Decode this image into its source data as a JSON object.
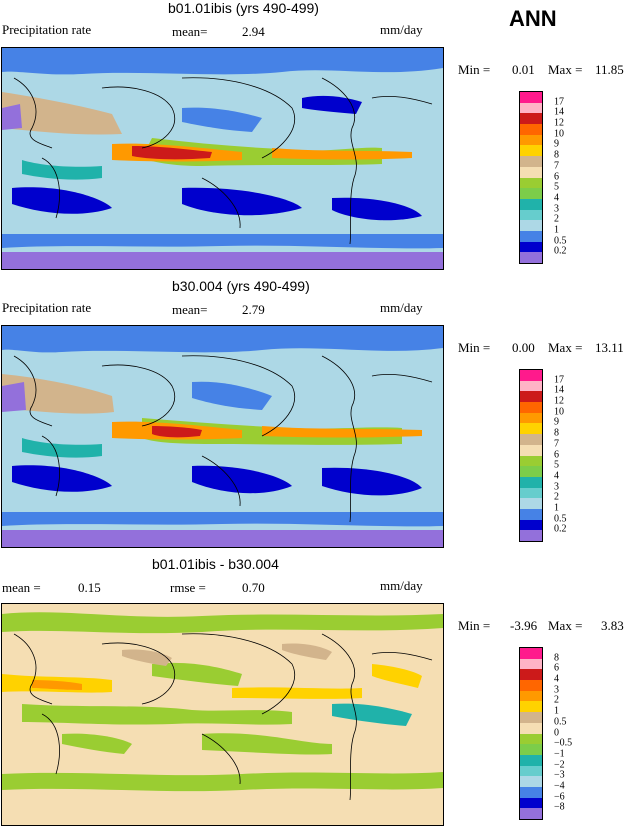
{
  "season": "ANN",
  "panels": [
    {
      "title": "b01.01ibis (yrs 490-499)",
      "left_label": "Precipitation rate",
      "stat_label": "mean=",
      "stat_value": "2.94",
      "stat2_label": "",
      "stat2_value": "",
      "units": "mm/day",
      "min_label": "Min =",
      "min_value": "0.01",
      "max_label": "Max =",
      "max_value": "11.85",
      "colorbar": {
        "levels": [
          "17",
          "14",
          "12",
          "10",
          "9",
          "8",
          "7",
          "6",
          "5",
          "4",
          "3",
          "2",
          "1",
          "0.5",
          "0.2"
        ],
        "colors": [
          "#ff1a8c",
          "#ffb3c6",
          "#cc1a1a",
          "#ff6600",
          "#ff9900",
          "#ffd200",
          "#d2b48c",
          "#f5deb3",
          "#9acd32",
          "#7ccd4a",
          "#20b2aa",
          "#66cdcd",
          "#add8e6",
          "#4682e6",
          "#0000cd",
          "#9370db"
        ]
      }
    },
    {
      "title": "b30.004 (yrs 490-499)",
      "left_label": "Precipitation rate",
      "stat_label": "mean=",
      "stat_value": "2.79",
      "stat2_label": "",
      "stat2_value": "",
      "units": "mm/day",
      "min_label": "Min =",
      "min_value": "0.00",
      "max_label": "Max =",
      "max_value": "13.11",
      "colorbar": {
        "levels": [
          "17",
          "14",
          "12",
          "10",
          "9",
          "8",
          "7",
          "6",
          "5",
          "4",
          "3",
          "2",
          "1",
          "0.5",
          "0.2"
        ],
        "colors": [
          "#ff1a8c",
          "#ffb3c6",
          "#cc1a1a",
          "#ff6600",
          "#ff9900",
          "#ffd200",
          "#d2b48c",
          "#f5deb3",
          "#9acd32",
          "#7ccd4a",
          "#20b2aa",
          "#66cdcd",
          "#add8e6",
          "#4682e6",
          "#0000cd",
          "#9370db"
        ]
      }
    },
    {
      "title": "b01.01ibis - b30.004",
      "left_label": "mean =",
      "stat_label": "",
      "stat_value": "0.15",
      "stat2_label": "rmse =",
      "stat2_value": "0.70",
      "units": "mm/day",
      "min_label": "Min =",
      "min_value": "-3.96",
      "max_label": "Max =",
      "max_value": "3.83",
      "colorbar": {
        "levels": [
          "8",
          "6",
          "4",
          "3",
          "2",
          "1",
          "0.5",
          "0",
          "−0.5",
          "−1",
          "−2",
          "−3",
          "−4",
          "−6",
          "−8"
        ],
        "colors": [
          "#ff1a8c",
          "#ffb3c6",
          "#cc1a1a",
          "#ff6600",
          "#ff9900",
          "#ffd200",
          "#d2b48c",
          "#f5deb3",
          "#9acd32",
          "#7ccd4a",
          "#20b2aa",
          "#66cdcd",
          "#add8e6",
          "#4682e6",
          "#0000cd",
          "#9370db"
        ]
      }
    }
  ],
  "chart_data": [
    {
      "type": "heatmap",
      "title": "b01.01ibis (yrs 490-499)",
      "variable": "Precipitation rate",
      "units": "mm/day",
      "mean": 2.94,
      "min": 0.01,
      "max": 11.85,
      "contour_levels": [
        0.2,
        0.5,
        1,
        2,
        3,
        4,
        5,
        6,
        7,
        8,
        9,
        10,
        12,
        14,
        17
      ]
    },
    {
      "type": "heatmap",
      "title": "b30.004 (yrs 490-499)",
      "variable": "Precipitation rate",
      "units": "mm/day",
      "mean": 2.79,
      "min": 0.0,
      "max": 13.11,
      "contour_levels": [
        0.2,
        0.5,
        1,
        2,
        3,
        4,
        5,
        6,
        7,
        8,
        9,
        10,
        12,
        14,
        17
      ]
    },
    {
      "type": "heatmap",
      "title": "b01.01ibis - b30.004",
      "units": "mm/day",
      "mean": 0.15,
      "rmse": 0.7,
      "min": -3.96,
      "max": 3.83,
      "contour_levels": [
        -8,
        -6,
        -4,
        -3,
        -2,
        -1,
        -0.5,
        0,
        0.5,
        1,
        2,
        3,
        4,
        6,
        8
      ]
    }
  ]
}
